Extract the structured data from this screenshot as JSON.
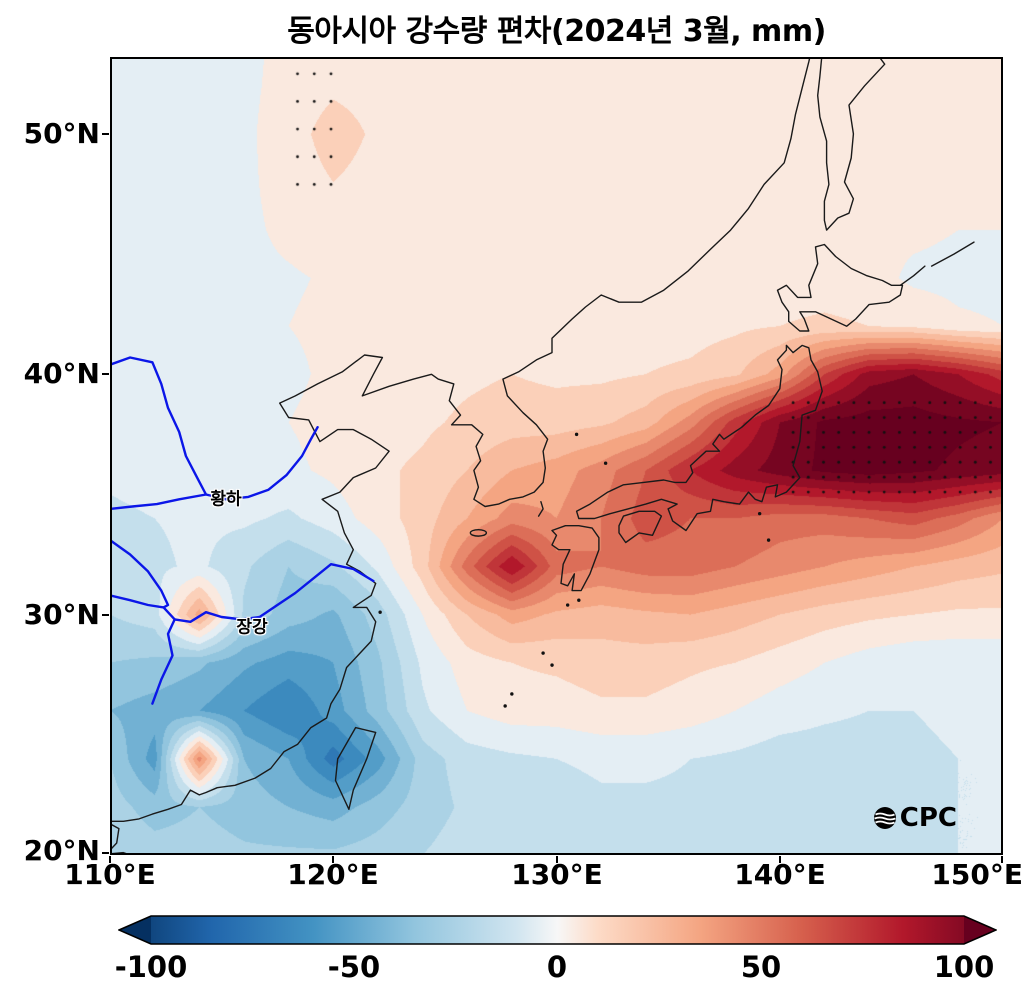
{
  "title": "동아시아 강수량 편차(2024년 3월, mm)",
  "map_labels": {
    "yellow_river": "황하",
    "yangtze_river": "장강"
  },
  "logo": {
    "text": "CPC"
  },
  "axes": {
    "x_ticks": [
      "110°E",
      "120°E",
      "130°E",
      "140°E",
      "150°E"
    ],
    "y_ticks": [
      "50°N",
      "40°N",
      "30°N",
      "20°N"
    ]
  },
  "colorbar": {
    "tick_labels": [
      "-100",
      "-50",
      "0",
      "50",
      "100"
    ],
    "min": -100,
    "max": 100,
    "units": "mm"
  },
  "chart_data": {
    "type": "heatmap",
    "title": "동아시아 강수량 편차(2024년 3월, mm)",
    "xlabel": "",
    "ylabel": "",
    "units": "mm",
    "lon_range": [
      110,
      150
    ],
    "lat_range": [
      20,
      53.2
    ],
    "colorbar_ticks": [
      -100,
      -50,
      0,
      50,
      100
    ],
    "grid_lons": [
      110,
      112,
      114,
      116,
      118,
      120,
      122,
      124,
      126,
      128,
      130,
      132,
      134,
      136,
      138,
      140,
      142,
      144,
      146,
      148,
      150
    ],
    "grid_lats": [
      54,
      52,
      50,
      48,
      46,
      44,
      42,
      40,
      38,
      36,
      34,
      32,
      30,
      28,
      26,
      24,
      22,
      20
    ],
    "anomaly_mm": [
      [
        -5,
        -4,
        -3,
        -2,
        2,
        5,
        4,
        2,
        2,
        2,
        1,
        1,
        1,
        1,
        1,
        1,
        1,
        1,
        1,
        1,
        1
      ],
      [
        -5,
        -4,
        -3,
        -2,
        3,
        8,
        6,
        3,
        2,
        2,
        2,
        2,
        2,
        2,
        2,
        2,
        2,
        1,
        1,
        1,
        1
      ],
      [
        -6,
        -5,
        -4,
        -2,
        5,
        15,
        8,
        4,
        2,
        2,
        2,
        2,
        2,
        2,
        2,
        2,
        2,
        2,
        2,
        2,
        2
      ],
      [
        -5,
        -4,
        -3,
        -2,
        4,
        10,
        6,
        3,
        2,
        2,
        2,
        3,
        3,
        2,
        2,
        2,
        2,
        2,
        2,
        2,
        2
      ],
      [
        -4,
        -4,
        -3,
        -2,
        2,
        5,
        3,
        2,
        2,
        3,
        3,
        4,
        4,
        4,
        3,
        3,
        3,
        2,
        2,
        0,
        0
      ],
      [
        -5,
        -4,
        -3,
        -2,
        -1,
        1,
        2,
        3,
        3,
        4,
        4,
        4,
        5,
        5,
        4,
        5,
        5,
        4,
        -2,
        -3,
        -3
      ],
      [
        -5,
        -4,
        -3,
        -2,
        0,
        2,
        3,
        5,
        6,
        6,
        5,
        5,
        6,
        6,
        8,
        10,
        12,
        10,
        8,
        2,
        0
      ],
      [
        -6,
        -5,
        -4,
        -3,
        -2,
        2,
        4,
        6,
        8,
        10,
        8,
        8,
        10,
        12,
        18,
        35,
        70,
        95,
        100,
        90,
        75
      ],
      [
        -6,
        -5,
        -4,
        -2,
        0,
        3,
        6,
        8,
        12,
        15,
        15,
        18,
        25,
        45,
        75,
        100,
        112,
        115,
        115,
        112,
        110
      ],
      [
        -8,
        -6,
        -5,
        -4,
        -2,
        2,
        8,
        12,
        20,
        30,
        35,
        45,
        60,
        80,
        95,
        105,
        112,
        115,
        112,
        108,
        105
      ],
      [
        -12,
        -10,
        -8,
        -8,
        -12,
        -5,
        5,
        15,
        30,
        45,
        40,
        50,
        65,
        60,
        60,
        55,
        55,
        60,
        65,
        55,
        40
      ],
      [
        -15,
        -12,
        -8,
        -18,
        -30,
        -22,
        -8,
        15,
        55,
        90,
        55,
        50,
        55,
        55,
        50,
        45,
        40,
        35,
        30,
        25,
        22
      ],
      [
        -20,
        -15,
        35,
        -22,
        -35,
        -42,
        -25,
        0,
        20,
        35,
        28,
        25,
        28,
        30,
        25,
        20,
        15,
        12,
        10,
        8,
        8
      ],
      [
        -30,
        -32,
        -38,
        -48,
        -55,
        -50,
        -32,
        -8,
        5,
        10,
        12,
        15,
        15,
        12,
        10,
        5,
        0,
        -5,
        -8,
        -8,
        -8
      ],
      [
        -40,
        -45,
        -50,
        -60,
        -70,
        -55,
        -35,
        -12,
        0,
        5,
        5,
        8,
        8,
        5,
        0,
        -5,
        -8,
        -10,
        -10,
        -8,
        -8
      ],
      [
        -30,
        -55,
        45,
        -40,
        -50,
        -75,
        -55,
        -25,
        -15,
        -12,
        -10,
        -8,
        -8,
        -10,
        -12,
        -15,
        -15,
        -15,
        -12,
        -10,
        -10
      ],
      [
        -25,
        -35,
        -30,
        -35,
        -40,
        -45,
        -35,
        -25,
        -18,
        -15,
        -15,
        -12,
        -12,
        -12,
        -15,
        -18,
        -18,
        -15,
        -12,
        -10,
        -10
      ],
      [
        -20,
        -25,
        -25,
        -28,
        -28,
        -28,
        -25,
        -20,
        -15,
        -12,
        -12,
        -12,
        -12,
        -12,
        -15,
        -18,
        -18,
        -15,
        -12,
        -10,
        -10
      ]
    ],
    "quantize_step": 10,
    "colormap": [
      {
        "v": -110,
        "c": "#053061"
      },
      {
        "v": -85,
        "c": "#2166ac"
      },
      {
        "v": -60,
        "c": "#4393c3"
      },
      {
        "v": -35,
        "c": "#92c5de"
      },
      {
        "v": -10,
        "c": "#d1e5f0"
      },
      {
        "v": 0,
        "c": "#f7f7f7"
      },
      {
        "v": 10,
        "c": "#fddbc7"
      },
      {
        "v": 35,
        "c": "#f4a582"
      },
      {
        "v": 60,
        "c": "#d6604d"
      },
      {
        "v": 85,
        "c": "#b2182b"
      },
      {
        "v": 110,
        "c": "#67001f"
      }
    ],
    "stipple_boxes": [
      {
        "lon0": 118.4,
        "lon1": 120.4,
        "lat0": 47.9,
        "lat1": 53.0,
        "dlon": 0.75,
        "dlat": 1.15
      },
      {
        "lon0": 140.6,
        "lon1": 149.9,
        "lat0": 35.1,
        "lat1": 39.4,
        "dlon": 0.68,
        "dlat": 0.62
      }
    ],
    "coastline_color": "#1a1a1a",
    "river_color": "#0b16e8"
  }
}
